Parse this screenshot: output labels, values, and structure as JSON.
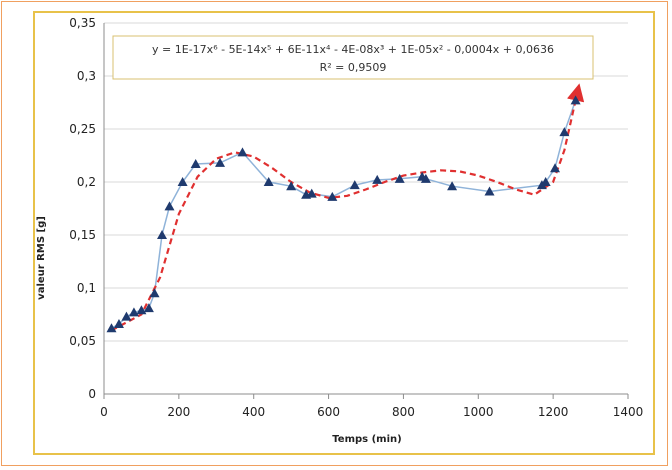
{
  "chart_data": {
    "type": "scatter",
    "xlabel": "Temps (min)",
    "ylabel": "valeur RMS [g]",
    "xlim": [
      0,
      1400
    ],
    "ylim": [
      0,
      0.35
    ],
    "x_ticks": [
      "0",
      "200",
      "400",
      "600",
      "800",
      "1000",
      "1200",
      "1400"
    ],
    "y_ticks": [
      "0",
      "0,05",
      "0,1",
      "0,15",
      "0,2",
      "0,25",
      "0,3",
      "0,35"
    ],
    "grid": "horizontal",
    "legend": "none",
    "series": [
      {
        "marker": "triangle",
        "color": "#1f3a6e",
        "line_color": "#8fb3d9",
        "x": [
          20,
          40,
          60,
          80,
          100,
          120,
          135,
          155,
          175,
          210,
          245,
          310,
          370,
          440,
          500,
          540,
          555,
          610,
          670,
          730,
          790,
          850,
          860,
          930,
          1030,
          1170,
          1180,
          1205,
          1230,
          1260
        ],
        "y": [
          0.062,
          0.066,
          0.073,
          0.077,
          0.079,
          0.081,
          0.095,
          0.15,
          0.177,
          0.2,
          0.217,
          0.218,
          0.228,
          0.2,
          0.196,
          0.188,
          0.189,
          0.186,
          0.197,
          0.202,
          0.203,
          0.205,
          0.203,
          0.196,
          0.191,
          0.197,
          0.2,
          0.213,
          0.247,
          0.277
        ]
      }
    ],
    "trendline": {
      "type": "polynomial",
      "color": "#e03030",
      "style": "dashed",
      "equation_text": "y = 1E-17x⁶ - 5E-14x⁵ + 6E-11x⁴ - 4E-08x³ + 1E-05x² - 0,0004x + 0,0636",
      "r2_text": "R² = 0,9509",
      "x": [
        20,
        100,
        150,
        200,
        250,
        300,
        350,
        400,
        450,
        500,
        550,
        600,
        650,
        700,
        750,
        800,
        850,
        900,
        950,
        1000,
        1050,
        1100,
        1150,
        1200,
        1230,
        1265
      ],
      "y": [
        0.06,
        0.075,
        0.11,
        0.17,
        0.205,
        0.222,
        0.228,
        0.224,
        0.213,
        0.2,
        0.19,
        0.185,
        0.187,
        0.193,
        0.2,
        0.206,
        0.209,
        0.211,
        0.21,
        0.206,
        0.2,
        0.193,
        0.188,
        0.2,
        0.23,
        0.285
      ]
    }
  },
  "colors": {
    "frame_border": "#f0a060",
    "plot_border": "#e8c24a",
    "equation_box_border": "#d9c070",
    "gridline": "#d9d9d9",
    "axis": "#8c8c8c"
  }
}
